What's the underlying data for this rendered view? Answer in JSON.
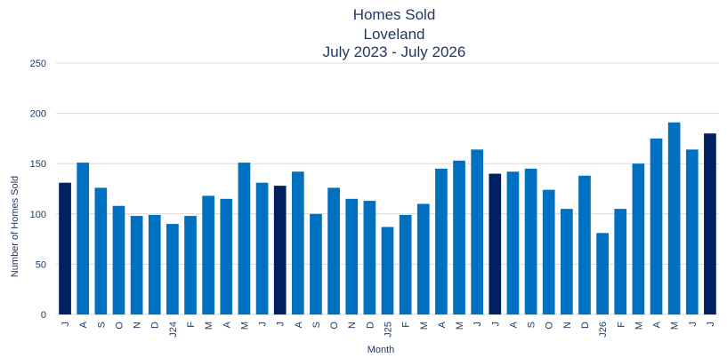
{
  "chart_data": {
    "type": "bar",
    "title": [
      "Homes Sold",
      "Loveland",
      "July 2023 - July 2026"
    ],
    "xlabel": "Month",
    "ylabel": "Number of Homes Sold",
    "ylim": [
      0,
      250
    ],
    "yticks": [
      0,
      50,
      100,
      150,
      200,
      250
    ],
    "grid": true,
    "colors": {
      "default": "#0070c0",
      "highlight": "#002060",
      "text": "#1f3864",
      "grid": "#d9d9d9"
    },
    "categories": [
      "J",
      "A",
      "S",
      "O",
      "N",
      "D",
      "J24",
      "F",
      "M",
      "A",
      "M",
      "J",
      "J",
      "A",
      "S",
      "O",
      "N",
      "D",
      "J25",
      "F",
      "M",
      "A",
      "M",
      "J",
      "J",
      "A",
      "S",
      "O",
      "N",
      "D",
      "J26",
      "F",
      "M",
      "A",
      "M",
      "J",
      "J"
    ],
    "values": [
      131,
      151,
      126,
      108,
      98,
      99,
      90,
      98,
      118,
      115,
      151,
      131,
      128,
      142,
      100,
      126,
      115,
      113,
      87,
      99,
      110,
      145,
      153,
      164,
      140,
      142,
      145,
      124,
      105,
      138,
      81,
      105,
      150,
      175,
      191,
      164,
      180
    ],
    "highlight_indices": [
      0,
      12,
      24,
      36
    ]
  }
}
